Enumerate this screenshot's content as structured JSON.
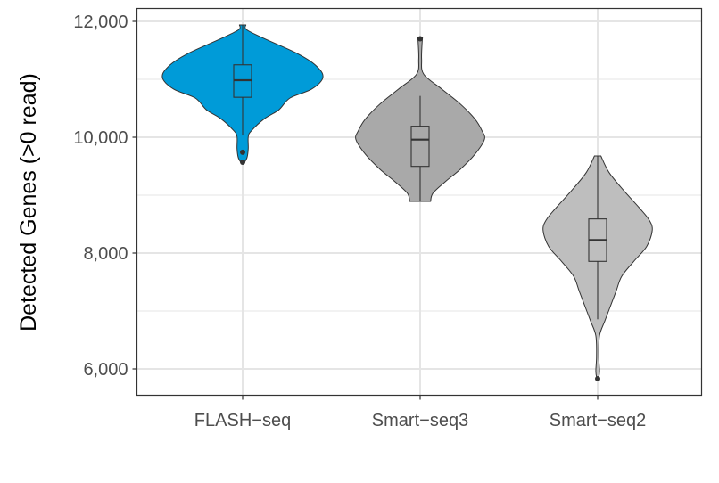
{
  "chart_data": {
    "type": "violin",
    "ylabel": "Detected Genes (>0 read)",
    "xlabel": "",
    "ylim": [
      5550,
      12250
    ],
    "yticks": [
      6000,
      8000,
      10000,
      12000
    ],
    "ytick_labels": [
      "6,000",
      "8,000",
      "10,000",
      "12,000"
    ],
    "minor_gridlines": [
      7000,
      9000,
      11000
    ],
    "grid": true,
    "categories": [
      "FLASH−seq",
      "Smart−seq3",
      "Smart−seq2"
    ],
    "series": [
      {
        "category": "FLASH−seq",
        "color": "#009BD8",
        "box": {
          "q1": 10690,
          "median": 10985,
          "q3": 11250,
          "whisker_low": 10030,
          "whisker_high": 11940
        },
        "outliers": [
          9740,
          9570
        ],
        "density": [
          [
            11938,
            0.04
          ],
          [
            11856,
            0.05
          ],
          [
            11703,
            0.27
          ],
          [
            11446,
            0.68
          ],
          [
            11241,
            0.91
          ],
          [
            11036,
            1.0
          ],
          [
            10831,
            0.86
          ],
          [
            10677,
            0.59
          ],
          [
            10472,
            0.45
          ],
          [
            10318,
            0.27
          ],
          [
            10113,
            0.11
          ],
          [
            10010,
            0.07
          ],
          [
            9805,
            0.07
          ],
          [
            9651,
            0.055
          ],
          [
            9559,
            0.02
          ]
        ]
      },
      {
        "category": "Smart−seq3",
        "color": "#A9A9A9",
        "box": {
          "q1": 9497,
          "median": 9959,
          "q3": 10190,
          "whisker_low": 8892,
          "whisker_high": 10713
        },
        "outliers": [
          11700
        ],
        "density": [
          [
            11728,
            0.03
          ],
          [
            11600,
            0.023
          ],
          [
            11343,
            0.018
          ],
          [
            11087,
            0.045
          ],
          [
            10831,
            0.27
          ],
          [
            10574,
            0.5
          ],
          [
            10318,
            0.68
          ],
          [
            10113,
            0.77
          ],
          [
            9959,
            0.8
          ],
          [
            9702,
            0.68
          ],
          [
            9446,
            0.5
          ],
          [
            9241,
            0.32
          ],
          [
            9036,
            0.16
          ],
          [
            8892,
            0.13
          ]
        ]
      },
      {
        "category": "Smart−seq2",
        "color": "#BEBEBE",
        "box": {
          "q1": 7857,
          "median": 8226,
          "q3": 8590,
          "whisker_low": 6857,
          "whisker_high": 9677
        },
        "outliers": [
          5831
        ],
        "density": [
          [
            9677,
            0.04
          ],
          [
            9395,
            0.14
          ],
          [
            9087,
            0.32
          ],
          [
            8779,
            0.52
          ],
          [
            8574,
            0.64
          ],
          [
            8395,
            0.68
          ],
          [
            8113,
            0.61
          ],
          [
            7857,
            0.45
          ],
          [
            7600,
            0.3
          ],
          [
            7344,
            0.23
          ],
          [
            7088,
            0.16
          ],
          [
            6831,
            0.09
          ],
          [
            6574,
            0.023
          ],
          [
            6215,
            0.014
          ],
          [
            5959,
            0.023
          ],
          [
            5831,
            0.01
          ]
        ]
      }
    ]
  }
}
